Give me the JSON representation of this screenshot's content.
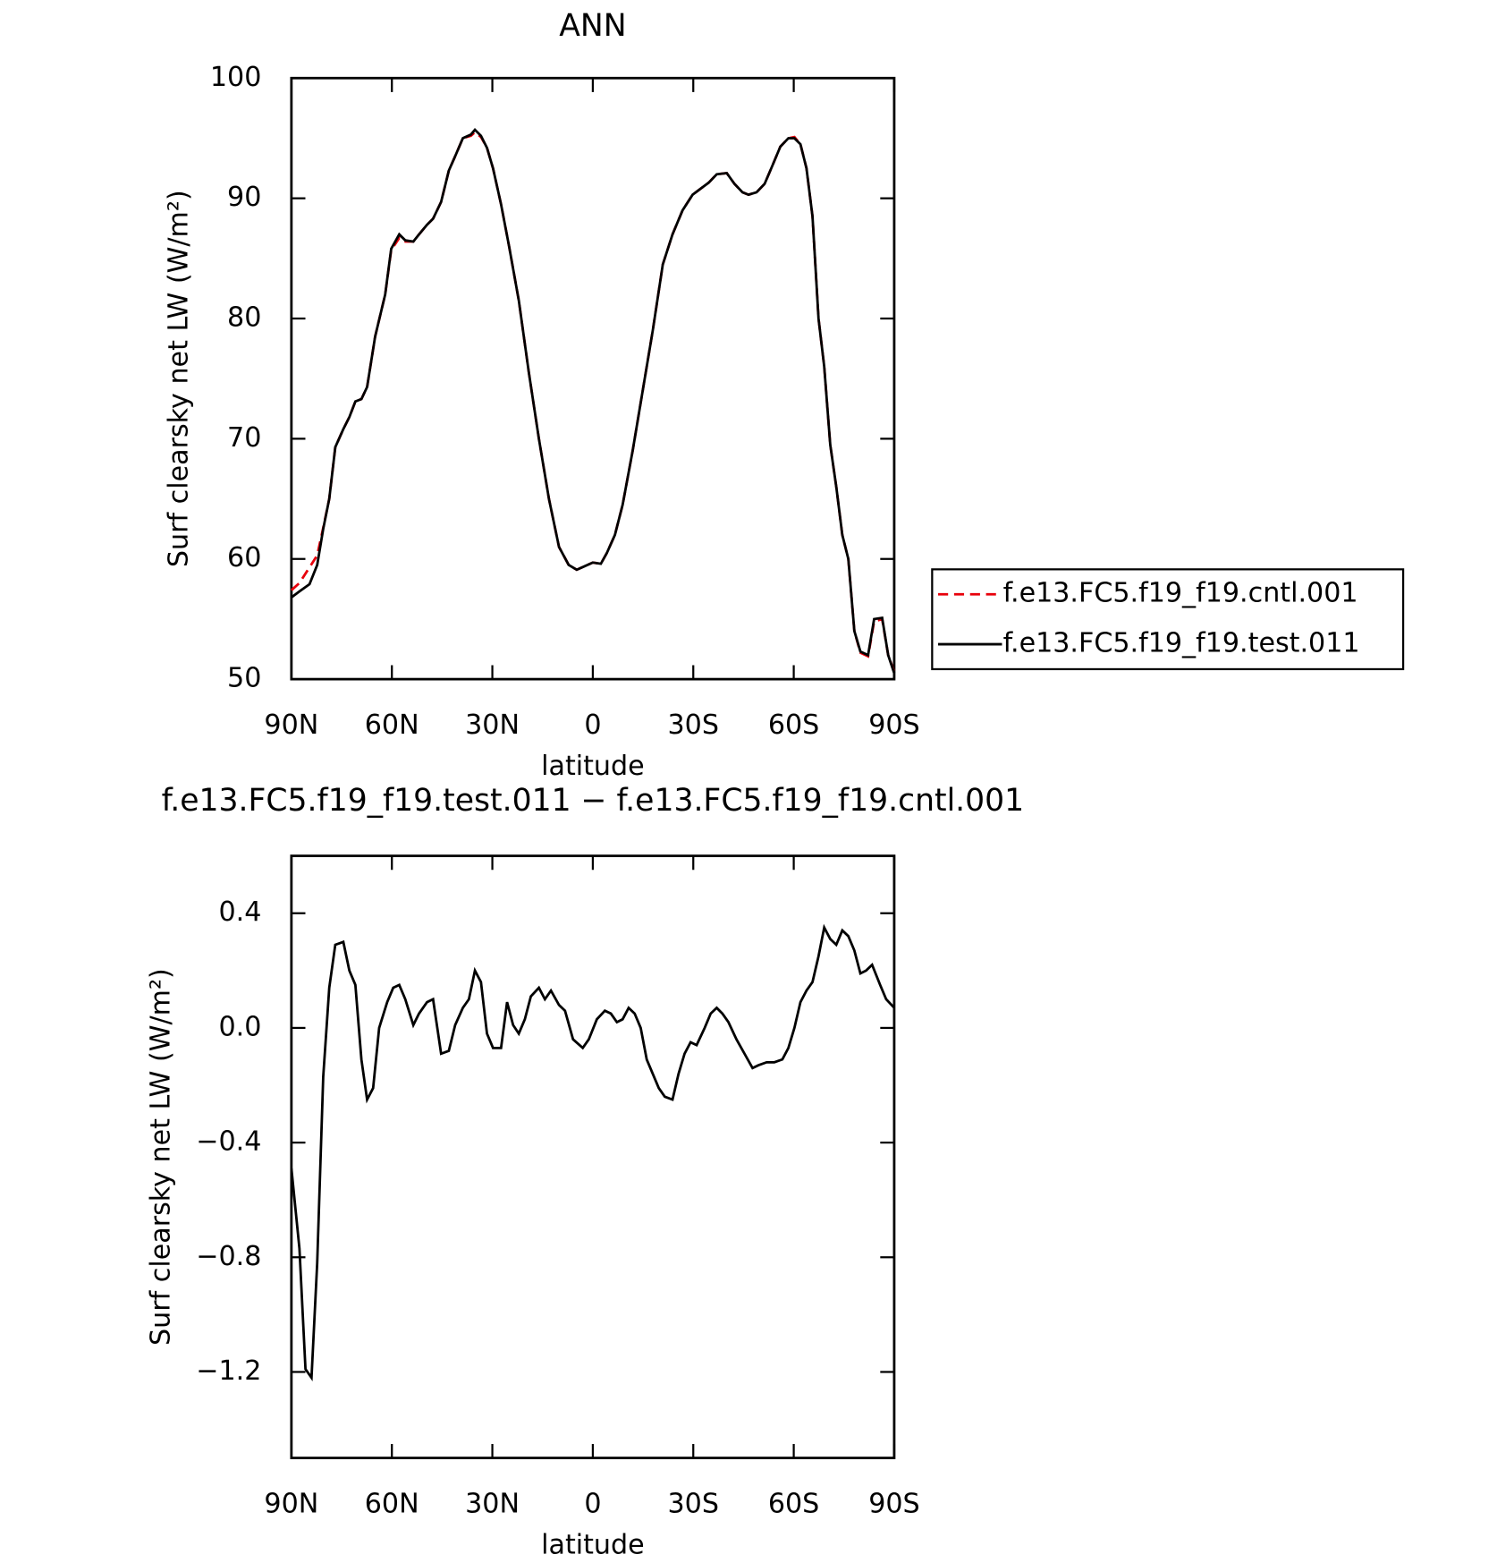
{
  "chart_data": [
    {
      "type": "line",
      "title": "ANN",
      "xlabel": "latitude",
      "ylabel": "Surf clearsky net LW (W/m²)",
      "xlim": [
        90,
        -90
      ],
      "xticks": [
        {
          "value": 90,
          "label": "90N"
        },
        {
          "value": 60,
          "label": "60N"
        },
        {
          "value": 30,
          "label": "30N"
        },
        0,
        {
          "value": -30,
          "label": "30S"
        },
        {
          "value": -60,
          "label": "60S"
        },
        {
          "value": -90,
          "label": "90S"
        }
      ],
      "ylim": [
        50,
        100
      ],
      "yticks": [
        50,
        60,
        70,
        80,
        90,
        100
      ],
      "legend": "right",
      "x": [
        90,
        87.6,
        84.6,
        82.3,
        80.5,
        78.7,
        76.9,
        74.5,
        72.7,
        70.9,
        69.1,
        67.4,
        65.0,
        62.0,
        60.2,
        57.8,
        56.0,
        53.6,
        51.9,
        49.5,
        47.7,
        45.3,
        43.0,
        41.1,
        38.8,
        36.4,
        35.2,
        33.4,
        31.6,
        29.8,
        27.4,
        25.0,
        22.1,
        19.1,
        16.1,
        13.1,
        10.1,
        7.2,
        4.8,
        2.4,
        0,
        -2.4,
        -4.2,
        -6.6,
        -8.9,
        -11.9,
        -14.9,
        -17.9,
        -20.9,
        -23.8,
        -26.8,
        -29.8,
        -32.2,
        -34.6,
        -37.0,
        -40.0,
        -42.3,
        -44.7,
        -46.5,
        -48.9,
        -51.3,
        -53.6,
        -56.0,
        -58.4,
        -60.2,
        -62.0,
        -63.8,
        -65.6,
        -67.4,
        -69.1,
        -70.9,
        -72.7,
        -74.5,
        -76.3,
        -78.1,
        -79.9,
        -82.2,
        -84.0,
        -86.4,
        -88.2,
        -90
      ],
      "series": [
        {
          "name": "f.e13.FC5.f19_f19.cntl.001",
          "color": "#e8000b",
          "dashed": true,
          "values": [
            57.4,
            58,
            59.3,
            60.3,
            62.6,
            65,
            69.3,
            70.8,
            71.8,
            73.1,
            73.3,
            74.3,
            78.5,
            82,
            85.7,
            86.7,
            86.4,
            86.4,
            87,
            87.8,
            88.3,
            89.7,
            92.3,
            93.5,
            95,
            95.2,
            95.5,
            95.1,
            94.2,
            92.5,
            89.5,
            86,
            81.5,
            75.5,
            70,
            65,
            61,
            59.5,
            59.1,
            59.4,
            59.7,
            59.6,
            60.5,
            62,
            64.5,
            69,
            74,
            79,
            84.5,
            87,
            89,
            90.3,
            90.8,
            91.3,
            92,
            92.1,
            91.2,
            90.5,
            90.3,
            90.5,
            91.2,
            92.7,
            94.3,
            95,
            95.1,
            94.5,
            92.5,
            88.5,
            80,
            76,
            69.5,
            66,
            62,
            60,
            54,
            52.2,
            51.9,
            54.8,
            55,
            52,
            50.6
          ]
        },
        {
          "name": "f.e13.FC5.f19_f19.test.011",
          "color": "#000000",
          "dashed": false,
          "values": [
            56.8,
            57.3,
            57.9,
            59.5,
            62.5,
            65,
            69.3,
            70.8,
            71.8,
            73.1,
            73.3,
            74.3,
            78.5,
            82,
            85.8,
            87,
            86.5,
            86.4,
            87,
            87.8,
            88.3,
            89.7,
            92.3,
            93.5,
            95,
            95.3,
            95.7,
            95.2,
            94.2,
            92.5,
            89.5,
            86,
            81.5,
            75.5,
            70,
            65,
            61,
            59.5,
            59.1,
            59.4,
            59.7,
            59.6,
            60.5,
            62,
            64.5,
            69,
            74,
            79,
            84.5,
            87,
            89,
            90.3,
            90.8,
            91.3,
            92,
            92.1,
            91.2,
            90.5,
            90.3,
            90.5,
            91.2,
            92.7,
            94.3,
            95,
            95,
            94.5,
            92.5,
            88.5,
            80,
            76,
            69.5,
            66,
            62,
            60,
            54,
            52.3,
            52,
            55,
            55.1,
            52,
            50.5
          ]
        }
      ]
    },
    {
      "type": "line",
      "title": "f.e13.FC5.f19_f19.test.011 − f.e13.FC5.f19_f19.cntl.001",
      "xlabel": "latitude",
      "ylabel": "Surf clearsky net LW (W/m²)",
      "xlim": [
        90,
        -90
      ],
      "xticks": [
        {
          "value": 90,
          "label": "90N"
        },
        {
          "value": 60,
          "label": "60N"
        },
        {
          "value": 30,
          "label": "30N"
        },
        0,
        {
          "value": -30,
          "label": "30S"
        },
        {
          "value": -60,
          "label": "60S"
        },
        {
          "value": -90,
          "label": "90S"
        }
      ],
      "ylim": [
        -1.5,
        0.6
      ],
      "yticks": [
        {
          "value": -1.2,
          "label": "−1.2"
        },
        {
          "value": -0.8,
          "label": "−0.8"
        },
        {
          "value": -0.4,
          "label": "−0.4"
        },
        {
          "value": 0,
          "label": "0.0"
        },
        0.4
      ],
      "color": "#000000",
      "x": [
        90,
        87.6,
        85.8,
        84.0,
        82.3,
        80.5,
        78.7,
        76.9,
        74.5,
        72.7,
        70.9,
        69.1,
        67.4,
        65.6,
        63.8,
        61.4,
        59.6,
        57.8,
        56.0,
        53.6,
        51.9,
        49.5,
        47.7,
        45.3,
        43.0,
        41.1,
        38.8,
        37.0,
        35.2,
        33.4,
        31.6,
        29.8,
        27.4,
        25.6,
        23.8,
        22.1,
        20.3,
        18.5,
        16.1,
        14.3,
        12.5,
        10.1,
        8.3,
        5.9,
        3.0,
        1.2,
        -1.2,
        -3.6,
        -5.4,
        -7.2,
        -8.9,
        -10.7,
        -12.5,
        -14.3,
        -16.1,
        -17.9,
        -19.7,
        -21.5,
        -23.8,
        -25.6,
        -27.4,
        -29.2,
        -31.0,
        -33.4,
        -35.2,
        -37.0,
        -38.7,
        -40.5,
        -42.9,
        -45.3,
        -47.7,
        -49.5,
        -51.9,
        -54.2,
        -56.6,
        -58.4,
        -60.2,
        -62.0,
        -63.8,
        -65.6,
        -67.4,
        -69.1,
        -70.9,
        -72.7,
        -74.5,
        -76.3,
        -78.1,
        -79.9,
        -81.6,
        -83.4,
        -85.8,
        -87.6,
        -90
      ],
      "values": [
        -0.49,
        -0.77,
        -1.19,
        -1.22,
        -0.82,
        -0.17,
        0.14,
        0.29,
        0.3,
        0.2,
        0.15,
        -0.11,
        -0.25,
        -0.21,
        0.0,
        0.09,
        0.14,
        0.15,
        0.1,
        0.01,
        0.05,
        0.09,
        0.1,
        -0.09,
        -0.08,
        0.01,
        0.07,
        0.1,
        0.2,
        0.16,
        -0.02,
        -0.07,
        -0.07,
        0.09,
        0.01,
        -0.02,
        0.03,
        0.11,
        0.14,
        0.1,
        0.13,
        0.08,
        0.06,
        -0.04,
        -0.07,
        -0.04,
        0.03,
        0.06,
        0.05,
        0.02,
        0.03,
        0.07,
        0.05,
        0.0,
        -0.11,
        -0.16,
        -0.21,
        -0.24,
        -0.25,
        -0.16,
        -0.09,
        -0.05,
        -0.06,
        0.0,
        0.05,
        0.07,
        0.05,
        0.02,
        -0.04,
        -0.09,
        -0.14,
        -0.13,
        -0.12,
        -0.12,
        -0.11,
        -0.07,
        0.0,
        0.09,
        0.13,
        0.16,
        0.25,
        0.35,
        0.31,
        0.29,
        0.34,
        0.32,
        0.27,
        0.19,
        0.2,
        0.22,
        0.15,
        0.1,
        0.07
      ]
    }
  ]
}
